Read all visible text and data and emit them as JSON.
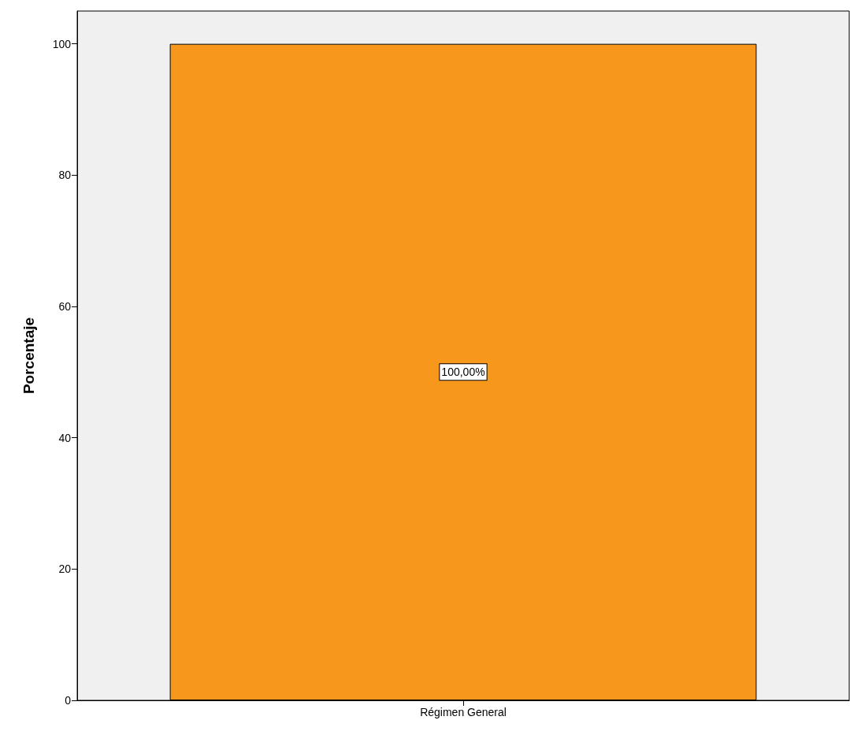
{
  "chart_data": {
    "type": "bar",
    "ylabel": "Porcentaje",
    "categories": [
      "Régimen General"
    ],
    "series": [
      {
        "color": "#f7981d",
        "values": [
          100
        ],
        "value_labels": [
          "100,00%"
        ]
      }
    ],
    "ylim": [
      0,
      105
    ],
    "yticks": [
      0,
      20,
      40,
      60,
      80,
      100
    ],
    "grid": false
  }
}
